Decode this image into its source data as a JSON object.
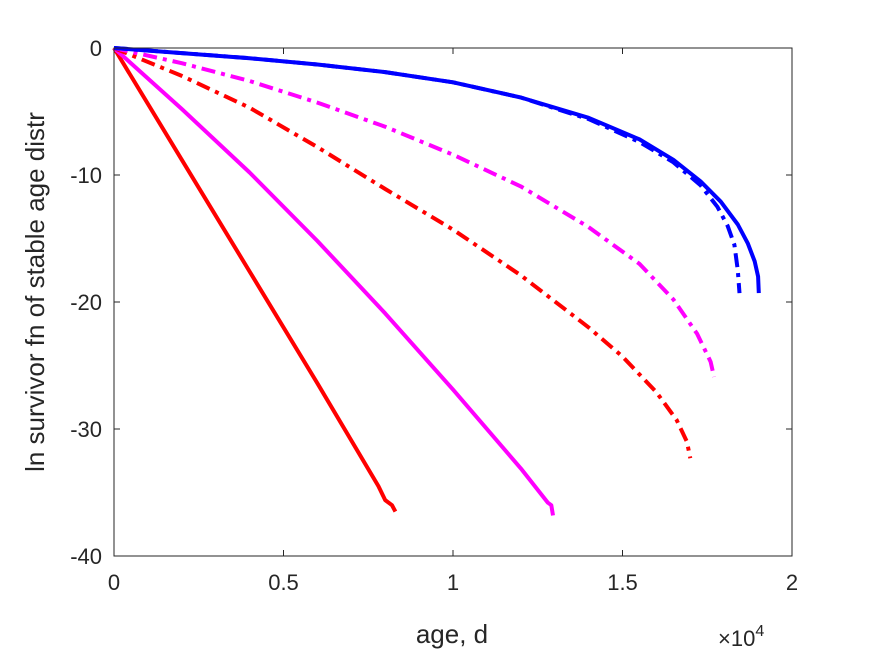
{
  "chart_data": {
    "type": "line",
    "title": "",
    "xlabel": "age, d",
    "ylabel": "ln survivor fn of stable age distr",
    "x_exponent_label": "×10",
    "x_exponent_power": "4",
    "xlim": [
      0,
      20000
    ],
    "ylim": [
      -40,
      0
    ],
    "x_ticks": [
      0,
      5000,
      10000,
      15000,
      20000
    ],
    "x_tick_labels": [
      "0",
      "0.5",
      "1",
      "1.5",
      "2"
    ],
    "y_ticks": [
      0,
      -10,
      -20,
      -30,
      -40
    ],
    "y_tick_labels": [
      "0",
      "-10",
      "-20",
      "-30",
      "-40"
    ],
    "grid": false,
    "series": [
      {
        "color": "#ff0000",
        "style": "solid",
        "x": [
          0,
          2000,
          4000,
          6000,
          7800,
          8000,
          8200,
          8300
        ],
        "y": [
          0,
          -8.8,
          -17.6,
          -26.4,
          -34.5,
          -35.6,
          -36.0,
          -36.5
        ]
      },
      {
        "color": "#ff00ff",
        "style": "solid",
        "x": [
          0,
          2000,
          4000,
          6000,
          8000,
          10000,
          12000,
          12800,
          12900,
          12950
        ],
        "y": [
          0,
          -4.8,
          -9.8,
          -15.2,
          -20.9,
          -26.9,
          -33.1,
          -35.8,
          -36.0,
          -36.8
        ]
      },
      {
        "color": "#ff0000",
        "style": "dashdot",
        "x": [
          0,
          2000,
          4000,
          6000,
          8000,
          10000,
          12000,
          14000,
          15000,
          16000,
          16600,
          16900,
          17000
        ],
        "y": [
          0,
          -2.2,
          -4.7,
          -7.8,
          -11.1,
          -14.3,
          -17.9,
          -22.0,
          -24.3,
          -27.1,
          -29.3,
          -31.0,
          -32.3
        ]
      },
      {
        "color": "#ff00ff",
        "style": "dashdot",
        "x": [
          0,
          2000,
          4000,
          6000,
          8000,
          10000,
          12000,
          14000,
          15500,
          16500,
          17200,
          17600,
          17700
        ],
        "y": [
          0,
          -1.2,
          -2.6,
          -4.3,
          -6.2,
          -8.4,
          -10.9,
          -14.1,
          -17.0,
          -19.8,
          -22.5,
          -24.7,
          -25.9
        ]
      },
      {
        "color": "#0000ff",
        "style": "dashdot",
        "x": [
          0,
          2000,
          4000,
          6000,
          8000,
          10000,
          12000,
          14000,
          15500,
          16500,
          17300,
          17800,
          18100,
          18300,
          18400,
          18450
        ],
        "y": [
          0,
          -0.4,
          -0.8,
          -1.3,
          -1.9,
          -2.7,
          -3.9,
          -5.6,
          -7.4,
          -9.0,
          -10.8,
          -12.5,
          -14.0,
          -15.5,
          -17.5,
          -19.3
        ]
      },
      {
        "color": "#0000ff",
        "style": "solid",
        "x": [
          0,
          2000,
          4000,
          6000,
          8000,
          10000,
          12000,
          14000,
          15500,
          16500,
          17300,
          17900,
          18400,
          18700,
          18900,
          19000,
          19020
        ],
        "y": [
          0,
          -0.4,
          -0.8,
          -1.3,
          -1.9,
          -2.7,
          -3.9,
          -5.5,
          -7.2,
          -8.8,
          -10.5,
          -12.1,
          -13.9,
          -15.4,
          -16.8,
          -18.0,
          -19.3
        ]
      }
    ]
  }
}
